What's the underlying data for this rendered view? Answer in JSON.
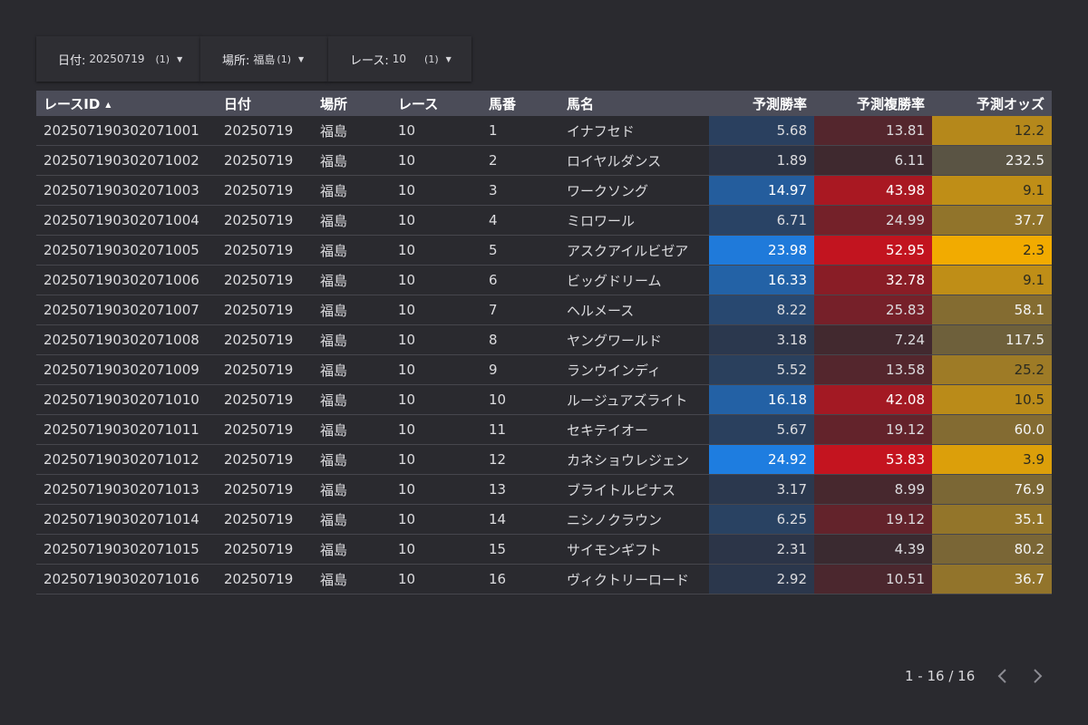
{
  "filters": [
    {
      "label": "日付",
      "sep": ":",
      "value": "20250719",
      "count": "(1)"
    },
    {
      "label": "場所",
      "sep": ":",
      "value": "福島",
      "count": "(1)"
    },
    {
      "label": "レース",
      "sep": ":",
      "value": "10",
      "count": "(1)"
    }
  ],
  "table": {
    "headers": [
      "レースID",
      "日付",
      "場所",
      "レース",
      "馬番",
      "馬名",
      "予測勝率",
      "予測複勝率",
      "予測オッズ"
    ],
    "sort_indicator": "▲",
    "rows": [
      [
        "2025071903020710​01",
        "20250719",
        "福島",
        "10",
        "1",
        "イナフセド",
        "5.68",
        "13.81",
        "12.2"
      ],
      [
        "202507190302071002",
        "20250719",
        "福島",
        "10",
        "2",
        "ロイヤルダンス",
        "1.89",
        "6.11",
        "232.5"
      ],
      [
        "202507190302071003",
        "20250719",
        "福島",
        "10",
        "3",
        "ワークソング",
        "14.97",
        "43.98",
        "9.1"
      ],
      [
        "202507190302071004",
        "20250719",
        "福島",
        "10",
        "4",
        "ミロワール",
        "6.71",
        "24.99",
        "37.7"
      ],
      [
        "202507190302071005",
        "20250719",
        "福島",
        "10",
        "5",
        "アスクアイルビゼア",
        "23.98",
        "52.95",
        "2.3"
      ],
      [
        "202507190302071006",
        "20250719",
        "福島",
        "10",
        "6",
        "ビッグドリーム",
        "16.33",
        "32.78",
        "9.1"
      ],
      [
        "202507190302071007",
        "20250719",
        "福島",
        "10",
        "7",
        "ヘルメース",
        "8.22",
        "25.83",
        "58.1"
      ],
      [
        "202507190302071008",
        "20250719",
        "福島",
        "10",
        "8",
        "ヤングワールド",
        "3.18",
        "7.24",
        "117.5"
      ],
      [
        "202507190302071009",
        "20250719",
        "福島",
        "10",
        "9",
        "ランウインディ",
        "5.52",
        "13.58",
        "25.2"
      ],
      [
        "202507190302071010",
        "20250719",
        "福島",
        "10",
        "10",
        "ルージュアズライト",
        "16.18",
        "42.08",
        "10.5"
      ],
      [
        "202507190302071011",
        "20250719",
        "福島",
        "10",
        "11",
        "セキテイオー",
        "5.67",
        "19.12",
        "60.0"
      ],
      [
        "202507190302071012",
        "20250719",
        "福島",
        "10",
        "12",
        "カネショウレジェン",
        "24.92",
        "53.83",
        "3.9"
      ],
      [
        "202507190302071013",
        "20250719",
        "福島",
        "10",
        "13",
        "ブライトルピナス",
        "3.17",
        "8.99",
        "76.9"
      ],
      [
        "202507190302071014",
        "20250719",
        "福島",
        "10",
        "14",
        "ニシノクラウン",
        "6.25",
        "19.12",
        "35.1"
      ],
      [
        "202507190302071015",
        "20250719",
        "福島",
        "10",
        "15",
        "サイモンギフト",
        "2.31",
        "4.39",
        "80.2"
      ],
      [
        "202507190302071016",
        "20250719",
        "福島",
        "10",
        "16",
        "ヴィクトリーロード",
        "2.92",
        "10.51",
        "36.7"
      ]
    ]
  },
  "pagination": {
    "range": "1 - 16 / 16"
  },
  "colors": {
    "background": "#2a2a2f",
    "header_bg": "#4b4c58",
    "win_rate_scale": [
      "#2c3445",
      "#1e7de0"
    ],
    "place_rate_scale": [
      "#3a2a30",
      "#c4141f"
    ],
    "odds_scale": [
      "#f2ab00",
      "#5a5444"
    ]
  }
}
